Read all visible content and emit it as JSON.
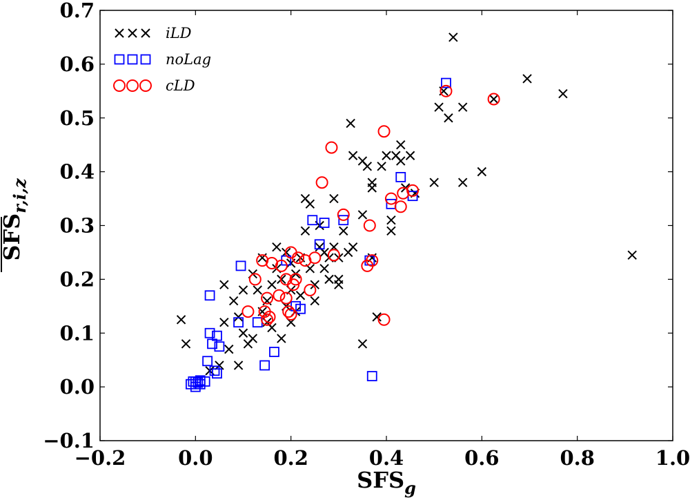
{
  "chart_data": {
    "type": "scatter",
    "title": "",
    "xlabel": "SFS",
    "xlabel_sub": "g",
    "ylabel": "SFS",
    "ylabel_sub": "r,i,z",
    "ylabel_overline": true,
    "xlim": [
      -0.2,
      1.0
    ],
    "ylim": [
      -0.1,
      0.7
    ],
    "xticks": [
      -0.2,
      0.0,
      0.2,
      0.4,
      0.6,
      0.8,
      1.0
    ],
    "xtick_labels": [
      "−0.2",
      "0.0",
      "0.2",
      "0.4",
      "0.6",
      "0.8",
      "1.0"
    ],
    "yticks": [
      -0.1,
      0.0,
      0.1,
      0.2,
      0.3,
      0.4,
      0.5,
      0.6,
      0.7
    ],
    "ytick_labels": [
      "−0.1",
      "0.0",
      "0.1",
      "0.2",
      "0.3",
      "0.4",
      "0.5",
      "0.6",
      "0.7"
    ],
    "grid": false,
    "legend_position": "top-left",
    "colors": {
      "iLD": "#000000",
      "noLag": "#0000ff",
      "cLD": "#ff0000"
    },
    "series": [
      {
        "name": "iLD",
        "marker": "x",
        "points": [
          [
            -0.03,
            0.125
          ],
          [
            -0.02,
            0.08
          ],
          [
            0.03,
            0.03
          ],
          [
            0.05,
            0.04
          ],
          [
            0.07,
            0.07
          ],
          [
            0.09,
            0.04
          ],
          [
            0.06,
            0.12
          ],
          [
            0.06,
            0.19
          ],
          [
            0.08,
            0.16
          ],
          [
            0.09,
            0.13
          ],
          [
            0.1,
            0.1
          ],
          [
            0.11,
            0.08
          ],
          [
            0.12,
            0.09
          ],
          [
            0.1,
            0.18
          ],
          [
            0.12,
            0.21
          ],
          [
            0.13,
            0.18
          ],
          [
            0.14,
            0.14
          ],
          [
            0.15,
            0.12
          ],
          [
            0.16,
            0.11
          ],
          [
            0.17,
            0.26
          ],
          [
            0.16,
            0.19
          ],
          [
            0.17,
            0.22
          ],
          [
            0.18,
            0.2
          ],
          [
            0.19,
            0.25
          ],
          [
            0.18,
            0.09
          ],
          [
            0.19,
            0.15
          ],
          [
            0.2,
            0.12
          ],
          [
            0.2,
            0.18
          ],
          [
            0.21,
            0.21
          ],
          [
            0.22,
            0.17
          ],
          [
            0.22,
            0.24
          ],
          [
            0.23,
            0.29
          ],
          [
            0.23,
            0.35
          ],
          [
            0.24,
            0.34
          ],
          [
            0.24,
            0.22
          ],
          [
            0.25,
            0.19
          ],
          [
            0.25,
            0.16
          ],
          [
            0.26,
            0.26
          ],
          [
            0.26,
            0.3
          ],
          [
            0.27,
            0.25
          ],
          [
            0.28,
            0.2
          ],
          [
            0.29,
            0.35
          ],
          [
            0.29,
            0.26
          ],
          [
            0.3,
            0.19
          ],
          [
            0.3,
            0.2
          ],
          [
            0.31,
            0.29
          ],
          [
            0.32,
            0.25
          ],
          [
            0.325,
            0.49
          ],
          [
            0.33,
            0.43
          ],
          [
            0.35,
            0.42
          ],
          [
            0.35,
            0.32
          ],
          [
            0.35,
            0.08
          ],
          [
            0.36,
            0.41
          ],
          [
            0.37,
            0.38
          ],
          [
            0.37,
            0.37
          ],
          [
            0.37,
            0.24
          ],
          [
            0.38,
            0.13
          ],
          [
            0.39,
            0.41
          ],
          [
            0.4,
            0.43
          ],
          [
            0.41,
            0.31
          ],
          [
            0.41,
            0.29
          ],
          [
            0.42,
            0.43
          ],
          [
            0.43,
            0.45
          ],
          [
            0.43,
            0.42
          ],
          [
            0.44,
            0.37
          ],
          [
            0.45,
            0.43
          ],
          [
            0.46,
            0.36
          ],
          [
            0.5,
            0.38
          ],
          [
            0.51,
            0.52
          ],
          [
            0.52,
            0.55
          ],
          [
            0.53,
            0.5
          ],
          [
            0.54,
            0.65
          ],
          [
            0.56,
            0.52
          ],
          [
            0.56,
            0.38
          ],
          [
            0.6,
            0.4
          ],
          [
            0.625,
            0.535
          ],
          [
            0.695,
            0.573
          ],
          [
            0.77,
            0.545
          ],
          [
            0.915,
            0.245
          ],
          [
            0.14,
            0.24
          ],
          [
            0.15,
            0.16
          ],
          [
            0.2,
            0.23
          ],
          [
            0.21,
            0.14
          ],
          [
            0.27,
            0.22
          ],
          [
            0.28,
            0.24
          ],
          [
            0.33,
            0.26
          ],
          [
            0.3,
            0.24
          ]
        ]
      },
      {
        "name": "noLag",
        "marker": "square",
        "points": [
          [
            -0.01,
            0.005
          ],
          [
            -0.005,
            0.01
          ],
          [
            0.0,
            0.0
          ],
          [
            0.005,
            0.008
          ],
          [
            0.01,
            0.012
          ],
          [
            0.02,
            0.01
          ],
          [
            0.025,
            0.048
          ],
          [
            0.03,
            0.1
          ],
          [
            0.03,
            0.17
          ],
          [
            0.035,
            0.08
          ],
          [
            0.04,
            0.03
          ],
          [
            0.045,
            0.095
          ],
          [
            0.045,
            0.025
          ],
          [
            0.05,
            0.075
          ],
          [
            0.09,
            0.12
          ],
          [
            0.095,
            0.225
          ],
          [
            0.13,
            0.12
          ],
          [
            0.145,
            0.04
          ],
          [
            0.165,
            0.065
          ],
          [
            0.19,
            0.235
          ],
          [
            0.21,
            0.15
          ],
          [
            0.22,
            0.145
          ],
          [
            0.245,
            0.31
          ],
          [
            0.26,
            0.265
          ],
          [
            0.27,
            0.305
          ],
          [
            0.31,
            0.31
          ],
          [
            0.365,
            0.235
          ],
          [
            0.37,
            0.02
          ],
          [
            0.41,
            0.34
          ],
          [
            0.43,
            0.39
          ],
          [
            0.455,
            0.355
          ],
          [
            0.525,
            0.565
          ],
          [
            0.0,
            0.01
          ],
          [
            0.01,
            0.005
          ]
        ]
      },
      {
        "name": "cLD",
        "marker": "circle",
        "points": [
          [
            0.11,
            0.14
          ],
          [
            0.125,
            0.2
          ],
          [
            0.14,
            0.235
          ],
          [
            0.145,
            0.14
          ],
          [
            0.15,
            0.165
          ],
          [
            0.155,
            0.13
          ],
          [
            0.16,
            0.23
          ],
          [
            0.175,
            0.17
          ],
          [
            0.19,
            0.165
          ],
          [
            0.19,
            0.2
          ],
          [
            0.195,
            0.14
          ],
          [
            0.2,
            0.25
          ],
          [
            0.205,
            0.19
          ],
          [
            0.21,
            0.2
          ],
          [
            0.215,
            0.24
          ],
          [
            0.23,
            0.235
          ],
          [
            0.24,
            0.18
          ],
          [
            0.25,
            0.24
          ],
          [
            0.265,
            0.38
          ],
          [
            0.285,
            0.445
          ],
          [
            0.29,
            0.245
          ],
          [
            0.31,
            0.32
          ],
          [
            0.36,
            0.225
          ],
          [
            0.365,
            0.3
          ],
          [
            0.37,
            0.235
          ],
          [
            0.395,
            0.475
          ],
          [
            0.395,
            0.125
          ],
          [
            0.41,
            0.35
          ],
          [
            0.43,
            0.335
          ],
          [
            0.435,
            0.36
          ],
          [
            0.455,
            0.365
          ],
          [
            0.525,
            0.55
          ],
          [
            0.625,
            0.535
          ],
          [
            0.15,
            0.125
          ],
          [
            0.2,
            0.135
          ],
          [
            0.18,
            0.225
          ]
        ]
      }
    ]
  },
  "legend": {
    "items": [
      {
        "label": "iLD",
        "marker": "x"
      },
      {
        "label": "noLag",
        "marker": "square"
      },
      {
        "label": "cLD",
        "marker": "circle"
      }
    ]
  }
}
